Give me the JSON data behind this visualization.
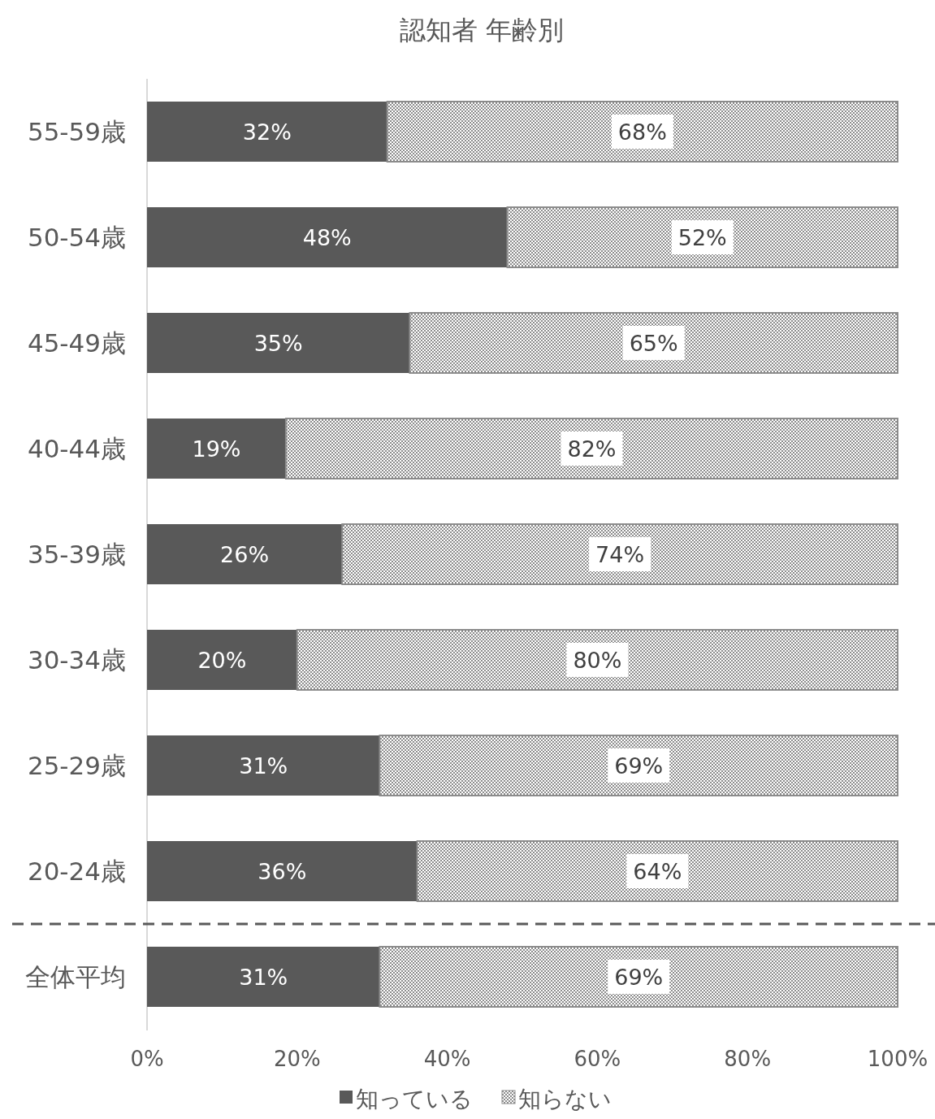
{
  "chart_data": {
    "type": "bar",
    "title": "認知者 年齢別",
    "orientation": "horizontal",
    "stacked": true,
    "legend": "bottom",
    "grid": false,
    "categories": [
      "55-59歳",
      "50-54歳",
      "45-49歳",
      "40-44歳",
      "35-39歳",
      "30-34歳",
      "25-29歳",
      "20-24歳",
      "全体平均"
    ],
    "series": [
      {
        "name": "知っている",
        "color": "#595959",
        "values": [
          32,
          48,
          35,
          18.5,
          26,
          20,
          31,
          36,
          31
        ],
        "value_labels": [
          "32%",
          "48%",
          "35%",
          "19%",
          "26%",
          "20%",
          "31%",
          "36%",
          "31%"
        ]
      },
      {
        "name": "知らない",
        "color": "#8c8c8c",
        "values": [
          68,
          52,
          65,
          81.5,
          74,
          80,
          69,
          64,
          69
        ],
        "value_labels": [
          "68%",
          "52%",
          "65%",
          "82%",
          "74%",
          "80%",
          "69%",
          "64%",
          "69%"
        ]
      }
    ],
    "xlim": [
      0,
      100
    ],
    "xticks": [
      {
        "value": 0,
        "label": "0%"
      },
      {
        "value": 20,
        "label": "20%"
      },
      {
        "value": 40,
        "label": "40%"
      },
      {
        "value": 60,
        "label": "60%"
      },
      {
        "value": 80,
        "label": "80%"
      },
      {
        "value": 100,
        "label": "100%"
      }
    ]
  }
}
